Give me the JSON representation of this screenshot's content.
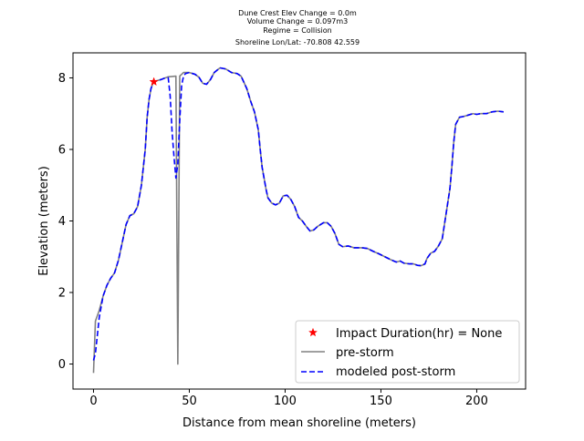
{
  "chart_data": {
    "type": "line",
    "title_lines": [
      "Dune Crest Elev Change = 0.0m",
      "Volume Change = 0.097m3",
      "Regime = Collision",
      "Shoreline Lon/Lat: -70.808 42.559"
    ],
    "xlabel": "Distance from mean shoreline (meters)",
    "ylabel": "Elevation (meters)",
    "xlim": [
      -10.7,
      225.5
    ],
    "ylim": [
      -0.7,
      8.7
    ],
    "xticks": [
      0,
      50,
      100,
      150,
      200
    ],
    "yticks": [
      0,
      2,
      4,
      6,
      8
    ],
    "grid": false,
    "legend_position": "lower-right",
    "colors": {
      "pre": "#808080",
      "post": "#0000ff",
      "impact": "#ff0000"
    },
    "series": [
      {
        "name": "Impact Duration(hr) = None",
        "style": "marker-star",
        "points": [
          [
            31.5,
            7.89
          ]
        ]
      },
      {
        "name": "pre-storm",
        "style": "solid",
        "points": [
          [
            0,
            -0.25
          ],
          [
            1,
            1.2
          ],
          [
            3,
            1.5
          ],
          [
            5,
            1.9
          ],
          [
            7,
            2.2
          ],
          [
            9,
            2.4
          ],
          [
            11,
            2.55
          ],
          [
            13,
            2.9
          ],
          [
            15,
            3.4
          ],
          [
            17,
            3.9
          ],
          [
            19,
            4.15
          ],
          [
            21,
            4.2
          ],
          [
            23,
            4.4
          ],
          [
            25,
            5.0
          ],
          [
            27,
            6.0
          ],
          [
            28,
            6.9
          ],
          [
            29,
            7.4
          ],
          [
            30,
            7.7
          ],
          [
            31,
            7.85
          ],
          [
            33,
            7.92
          ],
          [
            35,
            7.95
          ],
          [
            37,
            7.99
          ],
          [
            39,
            8.03
          ],
          [
            41,
            8.04
          ],
          [
            43,
            8.05
          ],
          [
            43.5,
            4.0
          ],
          [
            44,
            0.0
          ],
          [
            44.5,
            4.0
          ],
          [
            45,
            8.05
          ],
          [
            46,
            8.1
          ],
          [
            47,
            8.15
          ],
          [
            50,
            8.15
          ],
          [
            53,
            8.1
          ],
          [
            55,
            8.02
          ],
          [
            57,
            7.85
          ],
          [
            59,
            7.82
          ],
          [
            61,
            7.95
          ],
          [
            63,
            8.15
          ],
          [
            66,
            8.28
          ],
          [
            69,
            8.25
          ],
          [
            72,
            8.15
          ],
          [
            75,
            8.12
          ],
          [
            77,
            8.05
          ],
          [
            80,
            7.7
          ],
          [
            82,
            7.35
          ],
          [
            84,
            7.05
          ],
          [
            86,
            6.55
          ],
          [
            87,
            6.0
          ],
          [
            88,
            5.5
          ],
          [
            90,
            4.9
          ],
          [
            91,
            4.65
          ],
          [
            93,
            4.5
          ],
          [
            95,
            4.45
          ],
          [
            97,
            4.5
          ],
          [
            99,
            4.7
          ],
          [
            101,
            4.72
          ],
          [
            103,
            4.6
          ],
          [
            105,
            4.4
          ],
          [
            107,
            4.1
          ],
          [
            109,
            4.0
          ],
          [
            111,
            3.85
          ],
          [
            113,
            3.72
          ],
          [
            115,
            3.75
          ],
          [
            117,
            3.85
          ],
          [
            120,
            3.95
          ],
          [
            122,
            3.95
          ],
          [
            124,
            3.85
          ],
          [
            126,
            3.65
          ],
          [
            128,
            3.35
          ],
          [
            130,
            3.28
          ],
          [
            133,
            3.3
          ],
          [
            136,
            3.25
          ],
          [
            140,
            3.25
          ],
          [
            143,
            3.23
          ],
          [
            146,
            3.15
          ],
          [
            149,
            3.08
          ],
          [
            152,
            3.0
          ],
          [
            155,
            2.92
          ],
          [
            158,
            2.85
          ],
          [
            160,
            2.88
          ],
          [
            162,
            2.82
          ],
          [
            165,
            2.8
          ],
          [
            167,
            2.8
          ],
          [
            169,
            2.76
          ],
          [
            171,
            2.75
          ],
          [
            173,
            2.8
          ],
          [
            174,
            2.95
          ],
          [
            176,
            3.1
          ],
          [
            178,
            3.15
          ],
          [
            180,
            3.3
          ],
          [
            182,
            3.5
          ],
          [
            184,
            4.2
          ],
          [
            186,
            4.9
          ],
          [
            187,
            5.5
          ],
          [
            188,
            6.2
          ],
          [
            189,
            6.7
          ],
          [
            191,
            6.9
          ],
          [
            193,
            6.92
          ],
          [
            195,
            6.95
          ],
          [
            198,
            7.0
          ],
          [
            200,
            6.98
          ],
          [
            202,
            7.0
          ],
          [
            205,
            7.0
          ],
          [
            208,
            7.05
          ],
          [
            211,
            7.07
          ],
          [
            214,
            7.05
          ]
        ]
      },
      {
        "name": "modeled post-storm",
        "style": "dashed",
        "points": [
          [
            0,
            0.1
          ],
          [
            1,
            0.3
          ],
          [
            2,
            0.8
          ],
          [
            3,
            1.3
          ],
          [
            5,
            1.9
          ],
          [
            7,
            2.2
          ],
          [
            9,
            2.4
          ],
          [
            11,
            2.55
          ],
          [
            13,
            2.9
          ],
          [
            15,
            3.4
          ],
          [
            17,
            3.9
          ],
          [
            19,
            4.15
          ],
          [
            21,
            4.2
          ],
          [
            23,
            4.4
          ],
          [
            25,
            5.0
          ],
          [
            27,
            6.0
          ],
          [
            28,
            6.9
          ],
          [
            29,
            7.4
          ],
          [
            30,
            7.7
          ],
          [
            31,
            7.85
          ],
          [
            33,
            7.92
          ],
          [
            35,
            7.95
          ],
          [
            37,
            7.99
          ],
          [
            39,
            8.0
          ],
          [
            40,
            7.5
          ],
          [
            41,
            6.5
          ],
          [
            42,
            5.8
          ],
          [
            43,
            5.2
          ],
          [
            44,
            5.6
          ],
          [
            45,
            6.8
          ],
          [
            46,
            7.8
          ],
          [
            47,
            8.05
          ],
          [
            48,
            8.12
          ],
          [
            50,
            8.15
          ],
          [
            53,
            8.1
          ],
          [
            55,
            8.02
          ],
          [
            57,
            7.85
          ],
          [
            59,
            7.82
          ],
          [
            61,
            7.95
          ],
          [
            63,
            8.15
          ],
          [
            66,
            8.28
          ],
          [
            69,
            8.25
          ],
          [
            72,
            8.15
          ],
          [
            75,
            8.12
          ],
          [
            77,
            8.05
          ],
          [
            80,
            7.7
          ],
          [
            82,
            7.35
          ],
          [
            84,
            7.05
          ],
          [
            86,
            6.55
          ],
          [
            87,
            6.0
          ],
          [
            88,
            5.5
          ],
          [
            90,
            4.9
          ],
          [
            91,
            4.65
          ],
          [
            93,
            4.5
          ],
          [
            95,
            4.45
          ],
          [
            97,
            4.5
          ],
          [
            99,
            4.7
          ],
          [
            101,
            4.72
          ],
          [
            103,
            4.6
          ],
          [
            105,
            4.4
          ],
          [
            107,
            4.1
          ],
          [
            109,
            4.0
          ],
          [
            111,
            3.85
          ],
          [
            113,
            3.72
          ],
          [
            115,
            3.75
          ],
          [
            117,
            3.85
          ],
          [
            120,
            3.95
          ],
          [
            122,
            3.95
          ],
          [
            124,
            3.85
          ],
          [
            126,
            3.65
          ],
          [
            128,
            3.35
          ],
          [
            130,
            3.28
          ],
          [
            133,
            3.3
          ],
          [
            136,
            3.25
          ],
          [
            140,
            3.25
          ],
          [
            143,
            3.23
          ],
          [
            146,
            3.15
          ],
          [
            149,
            3.08
          ],
          [
            152,
            3.0
          ],
          [
            155,
            2.92
          ],
          [
            158,
            2.85
          ],
          [
            160,
            2.88
          ],
          [
            162,
            2.82
          ],
          [
            165,
            2.8
          ],
          [
            167,
            2.8
          ],
          [
            169,
            2.76
          ],
          [
            171,
            2.75
          ],
          [
            173,
            2.8
          ],
          [
            174,
            2.95
          ],
          [
            176,
            3.1
          ],
          [
            178,
            3.15
          ],
          [
            180,
            3.3
          ],
          [
            182,
            3.5
          ],
          [
            184,
            4.2
          ],
          [
            186,
            4.9
          ],
          [
            187,
            5.5
          ],
          [
            188,
            6.2
          ],
          [
            189,
            6.7
          ],
          [
            191,
            6.9
          ],
          [
            193,
            6.92
          ],
          [
            195,
            6.95
          ],
          [
            198,
            7.0
          ],
          [
            200,
            6.98
          ],
          [
            202,
            7.0
          ],
          [
            205,
            7.0
          ],
          [
            208,
            7.05
          ],
          [
            211,
            7.07
          ],
          [
            214,
            7.05
          ]
        ]
      }
    ]
  }
}
